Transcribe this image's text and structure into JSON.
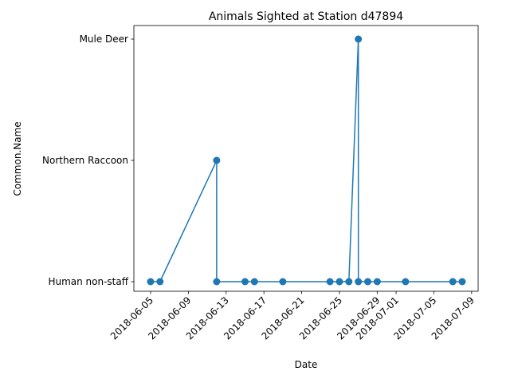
{
  "chart_data": {
    "type": "line",
    "title": "Animals Sighted at Station d47894",
    "xlabel": "Date",
    "ylabel": "Common.Name",
    "categories": [
      "Human non-staff",
      "Northern Raccoon",
      "Mule Deer"
    ],
    "x_ticks": [
      "2018-06-05",
      "2018-06-09",
      "2018-06-13",
      "2018-06-17",
      "2018-06-21",
      "2018-06-25",
      "2018-06-29",
      "2018-07-01",
      "2018-07-05",
      "2018-07-09"
    ],
    "xlim": [
      "2018-06-04",
      "2018-07-09"
    ],
    "color": "#1f77b4",
    "grid": false,
    "series": [
      {
        "points": [
          {
            "x": "2018-06-05",
            "y": "Human non-staff"
          },
          {
            "x": "2018-06-06",
            "y": "Human non-staff"
          },
          {
            "x": "2018-06-12",
            "y": "Northern Raccoon"
          },
          {
            "x": "2018-06-12",
            "y": "Human non-staff"
          },
          {
            "x": "2018-06-15",
            "y": "Human non-staff"
          },
          {
            "x": "2018-06-16",
            "y": "Human non-staff"
          },
          {
            "x": "2018-06-19",
            "y": "Human non-staff"
          },
          {
            "x": "2018-06-24",
            "y": "Human non-staff"
          },
          {
            "x": "2018-06-25",
            "y": "Human non-staff"
          },
          {
            "x": "2018-06-26",
            "y": "Human non-staff"
          },
          {
            "x": "2018-06-27",
            "y": "Mule Deer"
          },
          {
            "x": "2018-06-27",
            "y": "Human non-staff"
          },
          {
            "x": "2018-06-28",
            "y": "Human non-staff"
          },
          {
            "x": "2018-06-29",
            "y": "Human non-staff"
          },
          {
            "x": "2018-07-02",
            "y": "Human non-staff"
          },
          {
            "x": "2018-07-07",
            "y": "Human non-staff"
          },
          {
            "x": "2018-07-08",
            "y": "Human non-staff"
          }
        ]
      }
    ]
  }
}
